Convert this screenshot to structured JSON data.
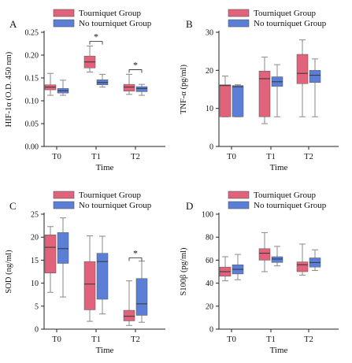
{
  "colors": {
    "tourniquet": "#e0637b",
    "no_tourniquet": "#5b7fd6",
    "axis": "#222222",
    "whisker": "#888888"
  },
  "legend": {
    "group1": "Tourniquet Group",
    "group2": "No tourniquet Group"
  },
  "chart_data": [
    {
      "type": "box",
      "panel_label": "A",
      "ylabel": "HIF-1α (O.D. 450 nm)",
      "xlabel": "Time",
      "categories": [
        "T0",
        "T1",
        "T2"
      ],
      "yticks": [
        "0.00",
        "0.05",
        "0.10",
        "0.15",
        "0.20",
        "0.25"
      ],
      "ylim": [
        0,
        0.25
      ],
      "series": [
        {
          "name": "Tourniquet Group",
          "boxes": [
            {
              "min": 0.112,
              "q1": 0.124,
              "median": 0.13,
              "q3": 0.135,
              "max": 0.16
            },
            {
              "min": 0.163,
              "q1": 0.172,
              "median": 0.185,
              "q3": 0.198,
              "max": 0.22
            },
            {
              "min": 0.114,
              "q1": 0.121,
              "median": 0.13,
              "q3": 0.136,
              "max": 0.158
            }
          ]
        },
        {
          "name": "No tourniquet Group",
          "boxes": [
            {
              "min": 0.112,
              "q1": 0.117,
              "median": 0.122,
              "q3": 0.127,
              "max": 0.145
            },
            {
              "min": 0.13,
              "q1": 0.135,
              "median": 0.14,
              "q3": 0.146,
              "max": 0.158
            },
            {
              "min": 0.112,
              "q1": 0.12,
              "median": 0.127,
              "q3": 0.131,
              "max": 0.136
            }
          ]
        }
      ],
      "significance": [
        {
          "category": "T1",
          "y": 0.23,
          "label": "*"
        },
        {
          "category": "T2",
          "y": 0.168,
          "label": "*"
        }
      ]
    },
    {
      "type": "box",
      "panel_label": "B",
      "ylabel": "TNF-α (pg/ml)",
      "xlabel": "Time",
      "categories": [
        "T0",
        "T1",
        "T2"
      ],
      "yticks": [
        "0",
        "10",
        "20",
        "30"
      ],
      "ylim": [
        0,
        30
      ],
      "series": [
        {
          "name": "Tourniquet Group",
          "boxes": [
            {
              "min": 7.8,
              "q1": 7.8,
              "median": 16,
              "q3": 16.2,
              "max": 18.5
            },
            {
              "min": 6,
              "q1": 7.8,
              "median": 17.8,
              "q3": 19.8,
              "max": 23.5
            },
            {
              "min": 7.8,
              "q1": 16.5,
              "median": 19.2,
              "q3": 24.2,
              "max": 28
            }
          ]
        },
        {
          "name": "No tourniquet Group",
          "boxes": [
            {
              "min": 7.8,
              "q1": 7.8,
              "median": 15.7,
              "q3": 16,
              "max": 16.2
            },
            {
              "min": 7.8,
              "q1": 15.8,
              "median": 17,
              "q3": 18.3,
              "max": 21.5
            },
            {
              "min": 7.8,
              "q1": 16.8,
              "median": 18.7,
              "q3": 20,
              "max": 23
            }
          ]
        }
      ],
      "significance": []
    },
    {
      "type": "box",
      "panel_label": "C",
      "ylabel": "SOD (ng/ml)",
      "xlabel": "Time",
      "categories": [
        "T0",
        "T1",
        "T2"
      ],
      "yticks": [
        "0",
        "5",
        "10",
        "15",
        "20",
        "25"
      ],
      "ylim": [
        0,
        25
      ],
      "series": [
        {
          "name": "Tourniquet Group",
          "boxes": [
            {
              "min": 8,
              "q1": 12.2,
              "median": 17.8,
              "q3": 20.5,
              "max": 22.3
            },
            {
              "min": 1.7,
              "q1": 4.2,
              "median": 9.8,
              "q3": 14.7,
              "max": 20.3
            },
            {
              "min": 0.8,
              "q1": 1.8,
              "median": 2.8,
              "q3": 4.1,
              "max": 10.5
            }
          ]
        },
        {
          "name": "No tourniquet Group",
          "boxes": [
            {
              "min": 7,
              "q1": 14.3,
              "median": 17.5,
              "q3": 21,
              "max": 24.2
            },
            {
              "min": 3.3,
              "q1": 6.5,
              "median": 14.7,
              "q3": 16.5,
              "max": 20.2
            },
            {
              "min": 1.5,
              "q1": 3,
              "median": 5.5,
              "q3": 11,
              "max": 14.8
            }
          ]
        }
      ],
      "significance": [
        {
          "category": "T2",
          "y": 15.5,
          "label": "*"
        }
      ]
    },
    {
      "type": "box",
      "panel_label": "D",
      "ylabel": "S100β (pg/ml)",
      "xlabel": "Time",
      "categories": [
        "T0",
        "T1",
        "T2"
      ],
      "yticks": [
        "0",
        "20",
        "40",
        "60",
        "80",
        "100"
      ],
      "ylim": [
        0,
        100
      ],
      "series": [
        {
          "name": "Tourniquet Group",
          "boxes": [
            {
              "min": 42,
              "q1": 46,
              "median": 50,
              "q3": 54,
              "max": 63
            },
            {
              "min": 50,
              "q1": 60,
              "median": 66,
              "q3": 70,
              "max": 84
            },
            {
              "min": 47,
              "q1": 50,
              "median": 56,
              "q3": 58.5,
              "max": 74
            }
          ]
        },
        {
          "name": "No tourniquet Group",
          "boxes": [
            {
              "min": 43,
              "q1": 48,
              "median": 52,
              "q3": 56,
              "max": 65
            },
            {
              "min": 55,
              "q1": 58,
              "median": 61,
              "q3": 63,
              "max": 72
            },
            {
              "min": 51,
              "q1": 54,
              "median": 58,
              "q3": 62,
              "max": 69
            }
          ]
        }
      ],
      "significance": []
    }
  ]
}
